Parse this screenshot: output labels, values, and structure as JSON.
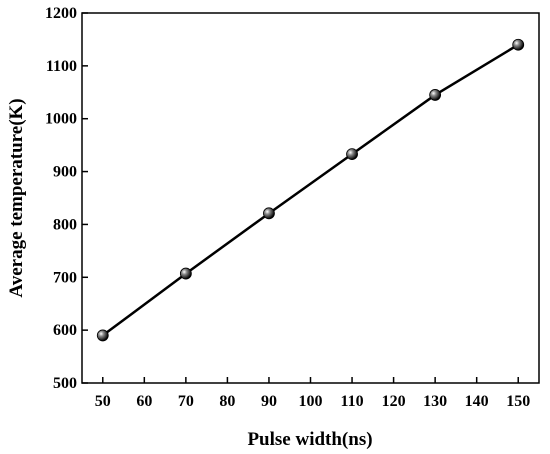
{
  "chart_data": {
    "type": "line",
    "title": "",
    "xlabel": "Pulse width(ns)",
    "ylabel": "Average temperature(K)",
    "xlim": [
      45,
      155
    ],
    "ylim": [
      500,
      1200
    ],
    "xticks": [
      50,
      60,
      70,
      80,
      90,
      100,
      110,
      120,
      130,
      140,
      150
    ],
    "yticks": [
      500,
      600,
      700,
      800,
      900,
      1000,
      1100,
      1200
    ],
    "grid": false,
    "legend": "none",
    "series": [
      {
        "color": "#000000",
        "marker": "sphere",
        "x": [
          50,
          70,
          90,
          110,
          130,
          150
        ],
        "y": [
          590,
          707,
          821,
          933,
          1045,
          1140
        ]
      }
    ]
  }
}
